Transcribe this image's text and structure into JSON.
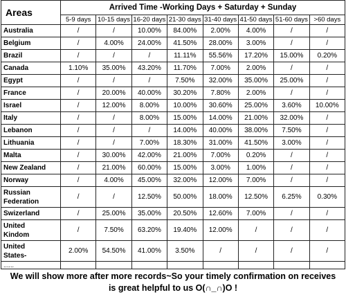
{
  "table": {
    "corner": "Areas",
    "title": "Arrived Time -Working Days + Saturday + Sunday",
    "columns": [
      "5-9 days",
      "10-15 days",
      "16-20 days",
      "21-30 days",
      "31-40 days",
      "41-50 days",
      "51-60 days",
      ">60 days"
    ],
    "rows": [
      {
        "area": "Australia",
        "cells": [
          "/",
          "/",
          "10.00%",
          "84.00%",
          "2.00%",
          "4.00%",
          "/",
          "/"
        ]
      },
      {
        "area": "Belgium",
        "cells": [
          "/",
          "4.00%",
          "24.00%",
          "41.50%",
          "28.00%",
          "3.00%",
          "/",
          "/"
        ]
      },
      {
        "area": "Brazil",
        "cells": [
          "/",
          "/",
          "/",
          "11.11%",
          "55.56%",
          "17.20%",
          "15.00%",
          "0.20%"
        ]
      },
      {
        "area": "Canada",
        "cells": [
          "1.10%",
          "35.00%",
          "43.20%",
          "11.70%",
          "7.00%",
          "2.00%",
          "/",
          "/"
        ]
      },
      {
        "area": "Egypt",
        "cells": [
          "/",
          "/",
          "/",
          "7.50%",
          "32.00%",
          "35.00%",
          "25.00%",
          "/"
        ]
      },
      {
        "area": "France",
        "cells": [
          "/",
          "20.00%",
          "40.00%",
          "30.20%",
          "7.80%",
          "2.00%",
          "/",
          "/"
        ]
      },
      {
        "area": "Israel",
        "cells": [
          "/",
          "12.00%",
          "8.00%",
          "10.00%",
          "30.60%",
          "25.00%",
          "3.60%",
          "10.00%"
        ]
      },
      {
        "area": "Italy",
        "cells": [
          "/",
          "/",
          "8.00%",
          "15.00%",
          "14.00%",
          "21.00%",
          "32.00%",
          "/"
        ]
      },
      {
        "area": "Lebanon",
        "cells": [
          "/",
          "/",
          "/",
          "14.00%",
          "40.00%",
          "38.00%",
          "7.50%",
          "/"
        ]
      },
      {
        "area": "Lithuania",
        "cells": [
          "/",
          "/",
          "7.00%",
          "18.30%",
          "31.00%",
          "41.50%",
          "3.00%",
          "/"
        ]
      },
      {
        "area": "Malta",
        "cells": [
          "/",
          "30.00%",
          "42.00%",
          "21.00%",
          "7.00%",
          "0.20%",
          "/",
          "/"
        ]
      },
      {
        "area": "New Zealand",
        "cells": [
          "/",
          "21.00%",
          "60.00%",
          "15.00%",
          "3.00%",
          "1.00%",
          "/",
          "/"
        ]
      },
      {
        "area": "Norway",
        "cells": [
          "/",
          "4.00%",
          "45.00%",
          "32.00%",
          "12.00%",
          "7.00%",
          "/",
          "/"
        ]
      },
      {
        "area": "Russian\nFederation",
        "cells": [
          "/",
          "/",
          "12.50%",
          "50.00%",
          "18.00%",
          "12.50%",
          "6.25%",
          "0.30%"
        ]
      },
      {
        "area": "Swizerland",
        "cells": [
          "/",
          "25.00%",
          "35.00%",
          "20.50%",
          "12.60%",
          "7.00%",
          "/",
          "/"
        ]
      },
      {
        "area": "United\nKindom",
        "cells": [
          "/",
          "7.50%",
          "63.20%",
          "19.40%",
          "12.00%",
          "/",
          "/",
          "/"
        ]
      },
      {
        "area": "United\nStates-",
        "cells": [
          "2.00%",
          "54.50%",
          "41.00%",
          "3.50%",
          "/",
          "/",
          "/",
          "/"
        ]
      }
    ],
    "more": "......"
  },
  "footer": "We will show more after more records~So your timely confirmation on receives is great helpful to us O(∩_∩)O !"
}
